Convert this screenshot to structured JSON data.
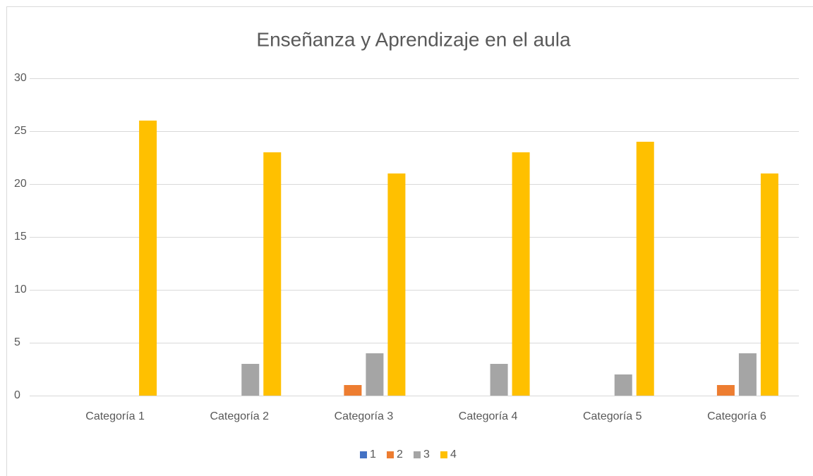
{
  "chart_data": {
    "type": "bar",
    "title": "Enseñanza y Aprendizaje en el aula",
    "categories": [
      "Categoría 1",
      "Categoría 2",
      "Categoría 3",
      "Categoría 4",
      "Categoría 5",
      "Categoría 6"
    ],
    "series": [
      {
        "name": "1",
        "color": "#4472c4",
        "values": [
          0,
          0,
          0,
          0,
          0,
          0
        ]
      },
      {
        "name": "2",
        "color": "#ed7d31",
        "values": [
          0,
          0,
          1,
          0,
          0,
          1
        ]
      },
      {
        "name": "3",
        "color": "#a5a5a5",
        "values": [
          0,
          3,
          4,
          3,
          2,
          4
        ]
      },
      {
        "name": "4",
        "color": "#ffc000",
        "values": [
          26,
          23,
          21,
          23,
          24,
          21
        ]
      }
    ],
    "ylim": [
      0,
      30
    ],
    "yticks": [
      0,
      5,
      10,
      15,
      20,
      25,
      30
    ],
    "grid": true,
    "legend": "bottom"
  }
}
